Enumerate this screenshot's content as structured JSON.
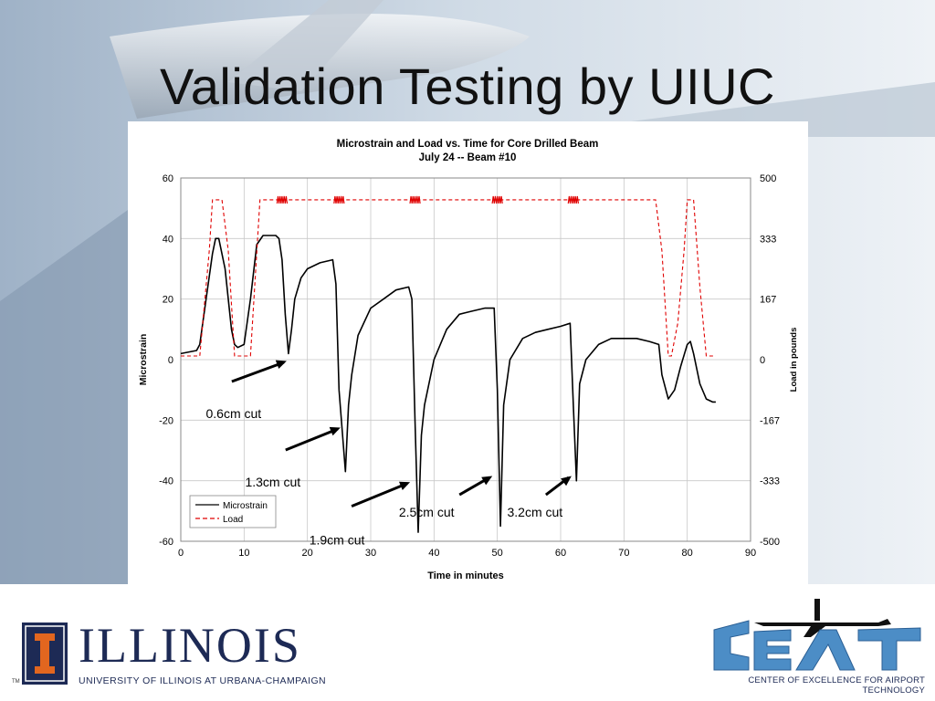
{
  "slide": {
    "title": "Validation Testing by UIUC"
  },
  "footer": {
    "left_logo_word": "ILLINOIS",
    "left_logo_sub": "UNIVERSITY OF ILLINOIS AT URBANA-CHAMPAIGN",
    "left_logo_tm": "TM",
    "right_logo_caption": "CENTER OF EXCELLENCE FOR AIRPORT TECHNOLOGY",
    "colors": {
      "illinois_blue": "#1d2a55",
      "illinois_orange": "#e2661f",
      "ceat_blue": "#4c8dc6"
    }
  },
  "chart_data": {
    "type": "line",
    "title": "Microstrain and Load vs. Time for Core Drilled Beam",
    "subtitle": "July 24 -- Beam #10",
    "xlabel": "Time in minutes",
    "ylabel": "Microstrain",
    "y2label": "Load in pounds",
    "xlim": [
      0,
      90
    ],
    "ylim": [
      -60,
      60
    ],
    "y2lim": [
      -500,
      500
    ],
    "x_ticks": [
      "0",
      "10",
      "20",
      "30",
      "40",
      "50",
      "60",
      "70",
      "80",
      "90"
    ],
    "y_ticks": [
      "60",
      "40",
      "20",
      "0",
      "-20",
      "-40",
      "-60"
    ],
    "y2_ticks": [
      "500",
      "333",
      "167",
      "0",
      "-167",
      "-333",
      "-500"
    ],
    "grid": true,
    "legend_position": "bottom-left",
    "series": [
      {
        "name": "Microstrain",
        "color": "#000000",
        "dash": "solid",
        "x": [
          0,
          2.5,
          3,
          4,
          5,
          5.5,
          6,
          7,
          8,
          8.5,
          9,
          10,
          11,
          12,
          13,
          14,
          15,
          15.5,
          16,
          16.5,
          17,
          17.5,
          18,
          19,
          20,
          22,
          24,
          24.5,
          25,
          26,
          26.5,
          27,
          28,
          30,
          32,
          34,
          36,
          36.5,
          37,
          37.5,
          38,
          38.5,
          40,
          42,
          44,
          46,
          48,
          49.5,
          50,
          50.5,
          51,
          52,
          54,
          56,
          58,
          60,
          61.5,
          62,
          62.5,
          63,
          64,
          66,
          68,
          70,
          72,
          74,
          75.5,
          76,
          77,
          78,
          79,
          80,
          80.5,
          81,
          82,
          83,
          84,
          84.5
        ],
        "values": [
          2,
          3,
          5,
          20,
          35,
          40,
          40,
          30,
          10,
          5,
          4,
          5,
          20,
          38,
          41,
          41,
          41,
          40,
          33,
          15,
          2,
          10,
          20,
          27,
          30,
          32,
          33,
          25,
          -10,
          -37,
          -15,
          -5,
          8,
          17,
          20,
          23,
          24,
          20,
          -20,
          -57,
          -25,
          -15,
          0,
          10,
          15,
          16,
          17,
          17,
          -10,
          -55,
          -15,
          0,
          7,
          9,
          10,
          11,
          12,
          -15,
          -40,
          -8,
          0,
          5,
          7,
          7,
          7,
          6,
          5,
          -5,
          -13,
          -10,
          -2,
          5,
          6,
          2,
          -8,
          -13,
          -14,
          -14
        ]
      },
      {
        "name": "Load",
        "color": "#e00000",
        "dash": "dashed",
        "x": [
          0,
          3,
          4.5,
          5,
          6.5,
          7.5,
          8.5,
          9,
          11,
          11.5,
          12.5,
          13,
          16.5,
          75,
          76,
          77,
          77.5,
          78.5,
          79.5,
          80,
          81,
          82,
          83,
          83.5,
          84.5
        ],
        "values": [
          10,
          10,
          300,
          440,
          440,
          300,
          10,
          10,
          10,
          150,
          440,
          440,
          440,
          440,
          300,
          10,
          10,
          100,
          300,
          440,
          440,
          200,
          10,
          10,
          10
        ]
      }
    ],
    "load_noise_windows_minutes": [
      16,
      25,
      37,
      50,
      62
    ],
    "annotations": [
      {
        "text": "0.6cm cut",
        "target_x": 17,
        "target_y": 0
      },
      {
        "text": "1.3cm cut",
        "target_x": 25.5,
        "target_y": -22
      },
      {
        "text": "1.9cm cut",
        "target_x": 36.5,
        "target_y": -40
      },
      {
        "text": "2.5cm cut",
        "target_x": 49.5,
        "target_y": -38
      },
      {
        "text": "3.2cm cut",
        "target_x": 62,
        "target_y": -38
      }
    ]
  }
}
